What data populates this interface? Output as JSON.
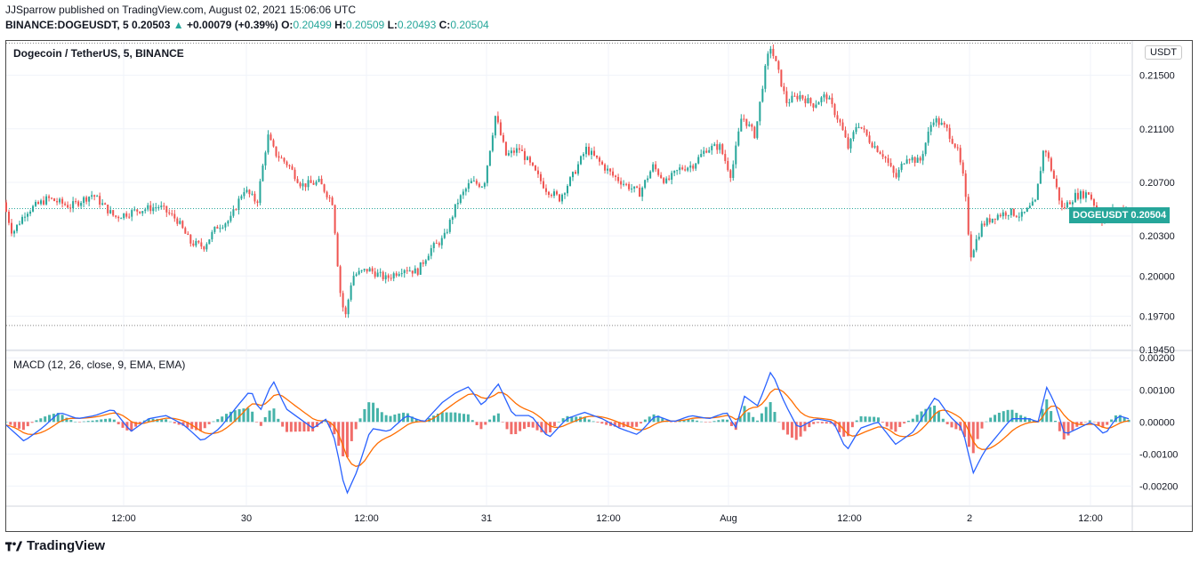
{
  "header": {
    "published": "JJSparrow published on TradingView.com, August 02, 2021 15:06:06 UTC",
    "symbol": "BINANCE:DOGEUSDT, 5",
    "price": "0.20503",
    "change_arrow": "▲",
    "change": "+0.00079 (+0.39%)",
    "o_label": "O:",
    "o_value": "0.20499",
    "h_label": "H:",
    "h_value": "0.20509",
    "l_label": "L:",
    "l_value": "0.20493",
    "c_label": "C:",
    "c_value": "0.20504"
  },
  "pane_title": "Dogecoin / TetherUS, 5, BINANCE",
  "macd_title": "MACD (12, 26, close, 9, EMA, EMA)",
  "currency_badge": "USDT",
  "last_price_label": "DOGEUSDT   0.20504",
  "branding": "TradingView",
  "colors": {
    "up": "#26a69a",
    "down": "#ef5350",
    "macd_line": "#2962ff",
    "signal_line": "#ff6d00",
    "grid": "#f0f3fa"
  },
  "chart_data": [
    {
      "type": "candlestick",
      "title": "Dogecoin / TetherUS, 5, BINANCE",
      "y_ticks": [
        "0.21500",
        "0.21100",
        "0.20700",
        "0.20300",
        "0.20000",
        "0.19700",
        "0.19450"
      ],
      "y_tick_values": [
        0.215,
        0.211,
        0.207,
        0.203,
        0.2,
        0.197,
        0.1945
      ],
      "ylim": [
        0.1945,
        0.2175
      ],
      "x_ticks": [
        "12:00",
        "30",
        "12:00",
        "31",
        "12:00",
        "Aug",
        "12:00",
        "2",
        "12:00"
      ],
      "high_level": 0.2174,
      "low_level": 0.1963,
      "last_price": 0.20504,
      "close_path_approx": [
        [
          0,
          0.2055
        ],
        [
          10,
          0.2032
        ],
        [
          25,
          0.2048
        ],
        [
          50,
          0.2058
        ],
        [
          75,
          0.2052
        ],
        [
          100,
          0.2061
        ],
        [
          125,
          0.2044
        ],
        [
          150,
          0.2049
        ],
        [
          175,
          0.2052
        ],
        [
          195,
          0.2042
        ],
        [
          210,
          0.2025
        ],
        [
          225,
          0.2022
        ],
        [
          240,
          0.2037
        ],
        [
          255,
          0.2042
        ],
        [
          270,
          0.2065
        ],
        [
          285,
          0.2055
        ],
        [
          297,
          0.2105
        ],
        [
          305,
          0.2092
        ],
        [
          320,
          0.2083
        ],
        [
          335,
          0.2068
        ],
        [
          355,
          0.207
        ],
        [
          370,
          0.2055
        ],
        [
          378,
          0.199
        ],
        [
          384,
          0.1968
        ],
        [
          392,
          0.2
        ],
        [
          410,
          0.2005
        ],
        [
          430,
          0.1998
        ],
        [
          450,
          0.2006
        ],
        [
          465,
          0.2003
        ],
        [
          480,
          0.202
        ],
        [
          495,
          0.2028
        ],
        [
          510,
          0.2055
        ],
        [
          525,
          0.207
        ],
        [
          540,
          0.2068
        ],
        [
          553,
          0.212
        ],
        [
          565,
          0.209
        ],
        [
          580,
          0.2095
        ],
        [
          595,
          0.208
        ],
        [
          610,
          0.2065
        ],
        [
          625,
          0.2058
        ],
        [
          640,
          0.2075
        ],
        [
          655,
          0.2095
        ],
        [
          670,
          0.2085
        ],
        [
          685,
          0.2075
        ],
        [
          700,
          0.2068
        ],
        [
          715,
          0.2062
        ],
        [
          730,
          0.2082
        ],
        [
          745,
          0.207
        ],
        [
          760,
          0.208
        ],
        [
          775,
          0.2083
        ],
        [
          790,
          0.2095
        ],
        [
          805,
          0.2097
        ],
        [
          818,
          0.2075
        ],
        [
          830,
          0.212
        ],
        [
          845,
          0.2105
        ],
        [
          855,
          0.215
        ],
        [
          862,
          0.2172
        ],
        [
          870,
          0.2155
        ],
        [
          880,
          0.213
        ],
        [
          895,
          0.2135
        ],
        [
          910,
          0.2128
        ],
        [
          925,
          0.2135
        ],
        [
          940,
          0.2115
        ],
        [
          950,
          0.2095
        ],
        [
          960,
          0.2115
        ],
        [
          975,
          0.21
        ],
        [
          990,
          0.209
        ],
        [
          1003,
          0.2073
        ],
        [
          1015,
          0.209
        ],
        [
          1030,
          0.2085
        ],
        [
          1045,
          0.2118
        ],
        [
          1060,
          0.211
        ],
        [
          1072,
          0.2095
        ],
        [
          1080,
          0.207
        ],
        [
          1087,
          0.2015
        ],
        [
          1100,
          0.2038
        ],
        [
          1115,
          0.2045
        ],
        [
          1130,
          0.2048
        ],
        [
          1145,
          0.2045
        ],
        [
          1160,
          0.2055
        ],
        [
          1170,
          0.2098
        ],
        [
          1180,
          0.2075
        ],
        [
          1190,
          0.205
        ],
        [
          1205,
          0.206
        ],
        [
          1220,
          0.2062
        ],
        [
          1235,
          0.2042
        ],
        [
          1250,
          0.205
        ],
        [
          1262,
          0.205
        ]
      ]
    },
    {
      "type": "macd",
      "title": "MACD (12, 26, close, 9, EMA, EMA)",
      "y_ticks": [
        "0.00200",
        "0.00100",
        "0.00000",
        "-0.00100",
        "-0.00200"
      ],
      "y_tick_values": [
        0.002,
        0.001,
        0.0,
        -0.001,
        -0.002
      ],
      "ylim": [
        -0.0026,
        0.0022
      ],
      "macd_path_approx": [
        [
          0,
          -0.0001
        ],
        [
          20,
          -0.0006
        ],
        [
          40,
          -0.0002
        ],
        [
          60,
          0.0003
        ],
        [
          80,
          0.0001
        ],
        [
          100,
          0.0002
        ],
        [
          120,
          0.0004
        ],
        [
          140,
          -0.0003
        ],
        [
          160,
          0.0001
        ],
        [
          180,
          0.0002
        ],
        [
          200,
          -0.0001
        ],
        [
          220,
          -0.0006
        ],
        [
          240,
          -0.0002
        ],
        [
          260,
          0.0005
        ],
        [
          275,
          0.001
        ],
        [
          285,
          0.0003
        ],
        [
          300,
          0.0013
        ],
        [
          315,
          0.0004
        ],
        [
          330,
          0.0001
        ],
        [
          345,
          -0.0002
        ],
        [
          360,
          0.0001
        ],
        [
          370,
          -0.0006
        ],
        [
          382,
          -0.0023
        ],
        [
          395,
          -0.0015
        ],
        [
          410,
          -0.0002
        ],
        [
          430,
          -0.0003
        ],
        [
          450,
          0.0002
        ],
        [
          470,
          0.0
        ],
        [
          490,
          0.0006
        ],
        [
          505,
          0.0009
        ],
        [
          520,
          0.0011
        ],
        [
          535,
          0.0005
        ],
        [
          553,
          0.0012
        ],
        [
          570,
          0.0002
        ],
        [
          590,
          0.0002
        ],
        [
          610,
          -0.0005
        ],
        [
          630,
          0.0001
        ],
        [
          650,
          0.0003
        ],
        [
          670,
          0.0001
        ],
        [
          690,
          -0.0002
        ],
        [
          710,
          -0.0004
        ],
        [
          730,
          0.0002
        ],
        [
          750,
          0.0
        ],
        [
          770,
          0.0002
        ],
        [
          790,
          0.0001
        ],
        [
          810,
          0.0003
        ],
        [
          820,
          -0.0002
        ],
        [
          830,
          0.0008
        ],
        [
          845,
          0.0005
        ],
        [
          860,
          0.0016
        ],
        [
          875,
          0.0006
        ],
        [
          890,
          -0.0002
        ],
        [
          910,
          0.0001
        ],
        [
          930,
          0.0
        ],
        [
          945,
          -0.0009
        ],
        [
          960,
          -0.0002
        ],
        [
          980,
          0.0
        ],
        [
          1000,
          -0.0007
        ],
        [
          1020,
          -0.0003
        ],
        [
          1045,
          0.0008
        ],
        [
          1060,
          0.0002
        ],
        [
          1075,
          -0.0002
        ],
        [
          1087,
          -0.0016
        ],
        [
          1100,
          -0.0009
        ],
        [
          1115,
          -0.0004
        ],
        [
          1130,
          0.0001
        ],
        [
          1150,
          0.0001
        ],
        [
          1160,
          0.0
        ],
        [
          1170,
          0.0011
        ],
        [
          1180,
          0.0005
        ],
        [
          1190,
          -0.0004
        ],
        [
          1205,
          -0.0002
        ],
        [
          1220,
          0.0
        ],
        [
          1235,
          -0.0004
        ],
        [
          1250,
          0.0002
        ],
        [
          1262,
          0.0001
        ]
      ]
    }
  ]
}
